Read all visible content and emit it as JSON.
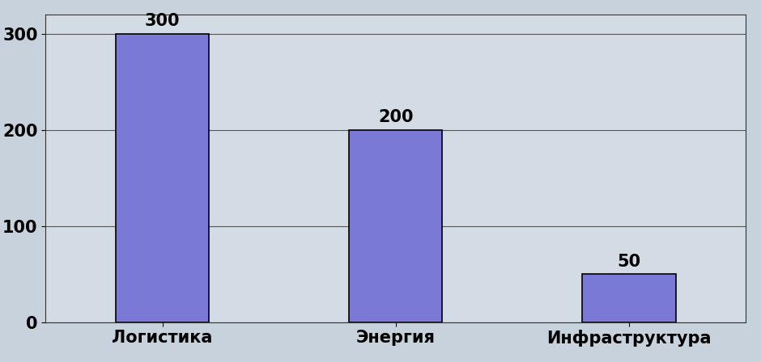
{
  "chart_data": {
    "type": "bar",
    "categories": [
      "Логистика",
      "Энергия",
      "Инфраструктура"
    ],
    "values": [
      300,
      200,
      50
    ],
    "color": "#7a7ad6",
    "ylim": [
      0,
      320
    ],
    "yticks": [
      0,
      100,
      200,
      300
    ],
    "grid": true,
    "data_labels": true
  }
}
